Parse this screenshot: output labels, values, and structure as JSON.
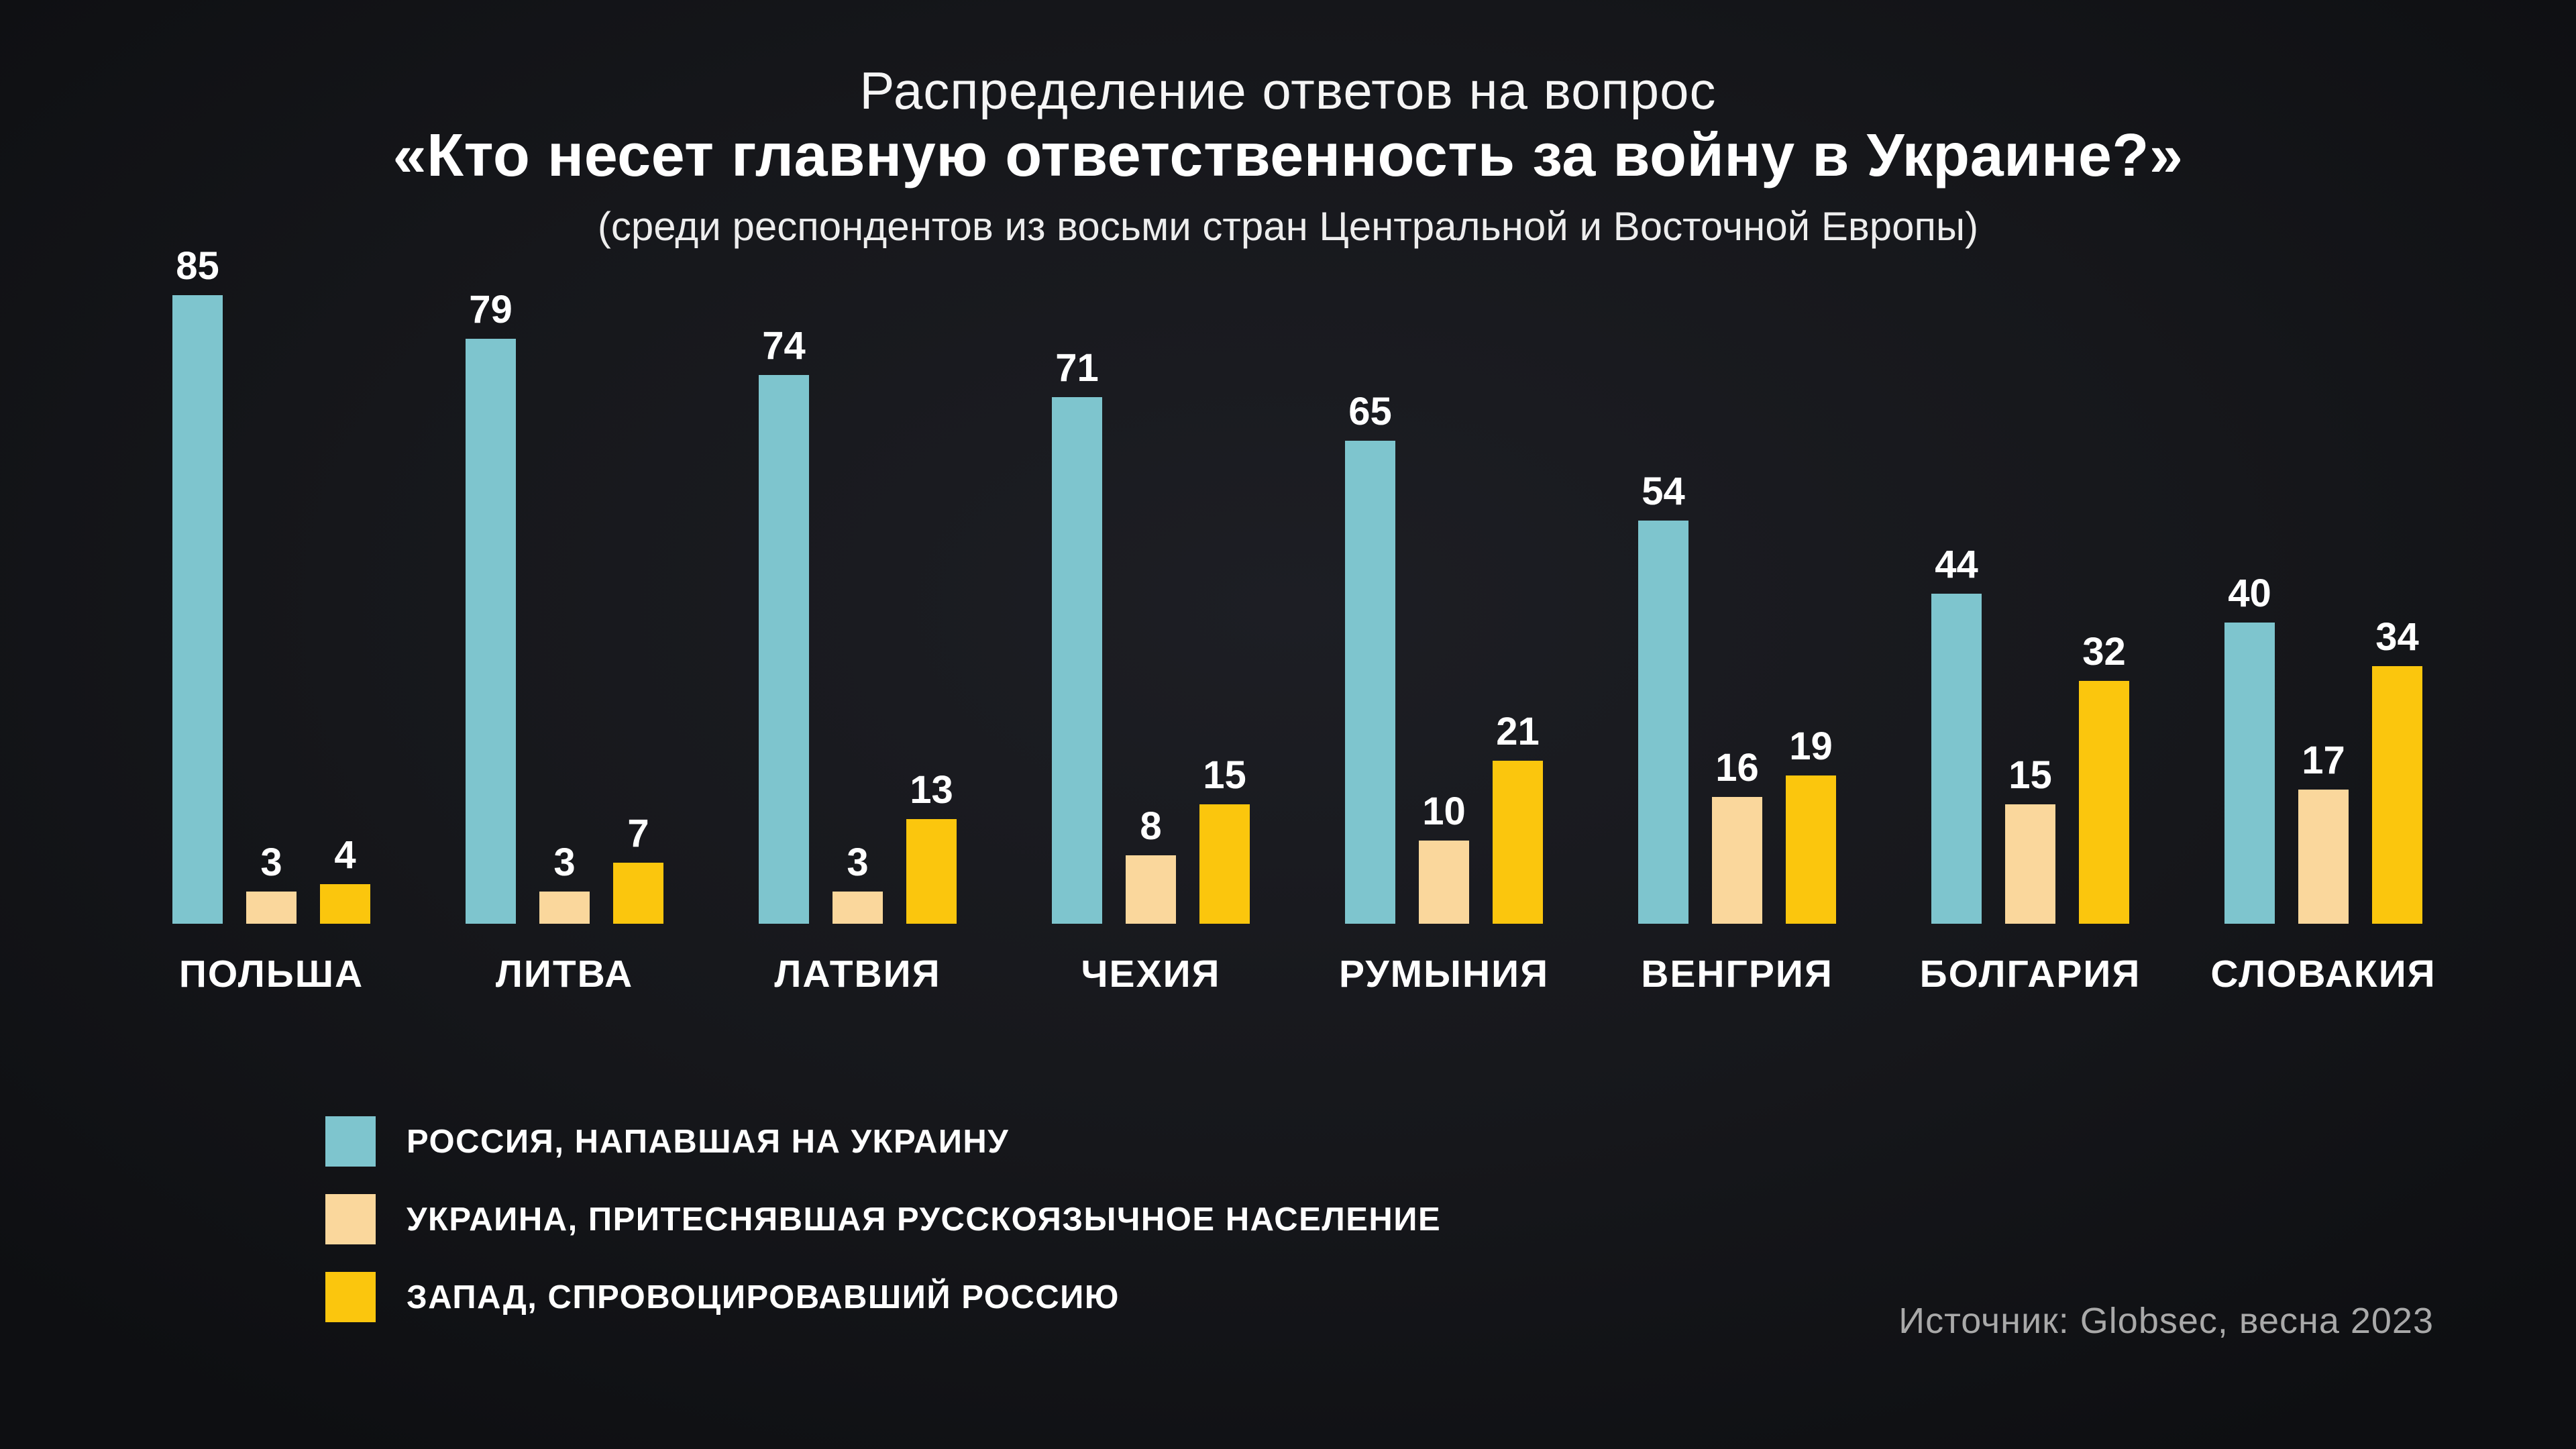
{
  "title": {
    "line1": "Распределение ответов на вопрос",
    "line2": "«Кто несет главную ответственность за войну в Украине?»",
    "line3": "(среди респондентов из восьми стран Центральной и Восточной Европы)"
  },
  "source_note": "Источник: Globsec, весна 2023",
  "colors": {
    "russia": "#7EC5CE",
    "ukraine": "#FAD79C",
    "west": "#FBC60D",
    "background": "#16171B",
    "text": "#FFFFFF",
    "source_text": "#A9A9A9"
  },
  "legend": [
    {
      "color_key": "russia",
      "label": "РОССИЯ, НАПАВШАЯ НА УКРАИНУ"
    },
    {
      "color_key": "ukraine",
      "label": "УКРАИНА, ПРИТЕСНЯВШАЯ РУССКОЯЗЫЧНОЕ НАСЕЛЕНИЕ"
    },
    {
      "color_key": "west",
      "label": "ЗАПАД, СПРОВОЦИРОВАВШИЙ РОССИЮ"
    }
  ],
  "chart_data": {
    "type": "bar",
    "categories": [
      "ПОЛЬША",
      "ЛИТВА",
      "ЛАТВИЯ",
      "ЧЕХИЯ",
      "РУМЫНИЯ",
      "ВЕНГРИЯ",
      "БОЛГАРИЯ",
      "СЛОВАКИЯ"
    ],
    "series": [
      {
        "name": "РОССИЯ, НАПАВШАЯ НА УКРАИНУ",
        "color_key": "russia",
        "values": [
          85,
          79,
          74,
          71,
          65,
          54,
          44,
          40
        ]
      },
      {
        "name": "УКРАИНА, ПРИТЕСНЯВШАЯ РУССКОЯЗЫЧНОЕ НАСЕЛЕНИЕ",
        "color_key": "ukraine",
        "values": [
          3,
          3,
          3,
          8,
          10,
          16,
          15,
          17
        ]
      },
      {
        "name": "ЗАПАД, СПРОВОЦИРОВАВШИЙ РОССИЮ",
        "color_key": "west",
        "values": [
          4,
          7,
          13,
          15,
          21,
          19,
          32,
          34
        ]
      }
    ],
    "ylim": [
      0,
      100
    ],
    "grid": false,
    "axes_visible": false,
    "value_labels": true,
    "legend_position": "bottom-left",
    "units": "percent"
  }
}
